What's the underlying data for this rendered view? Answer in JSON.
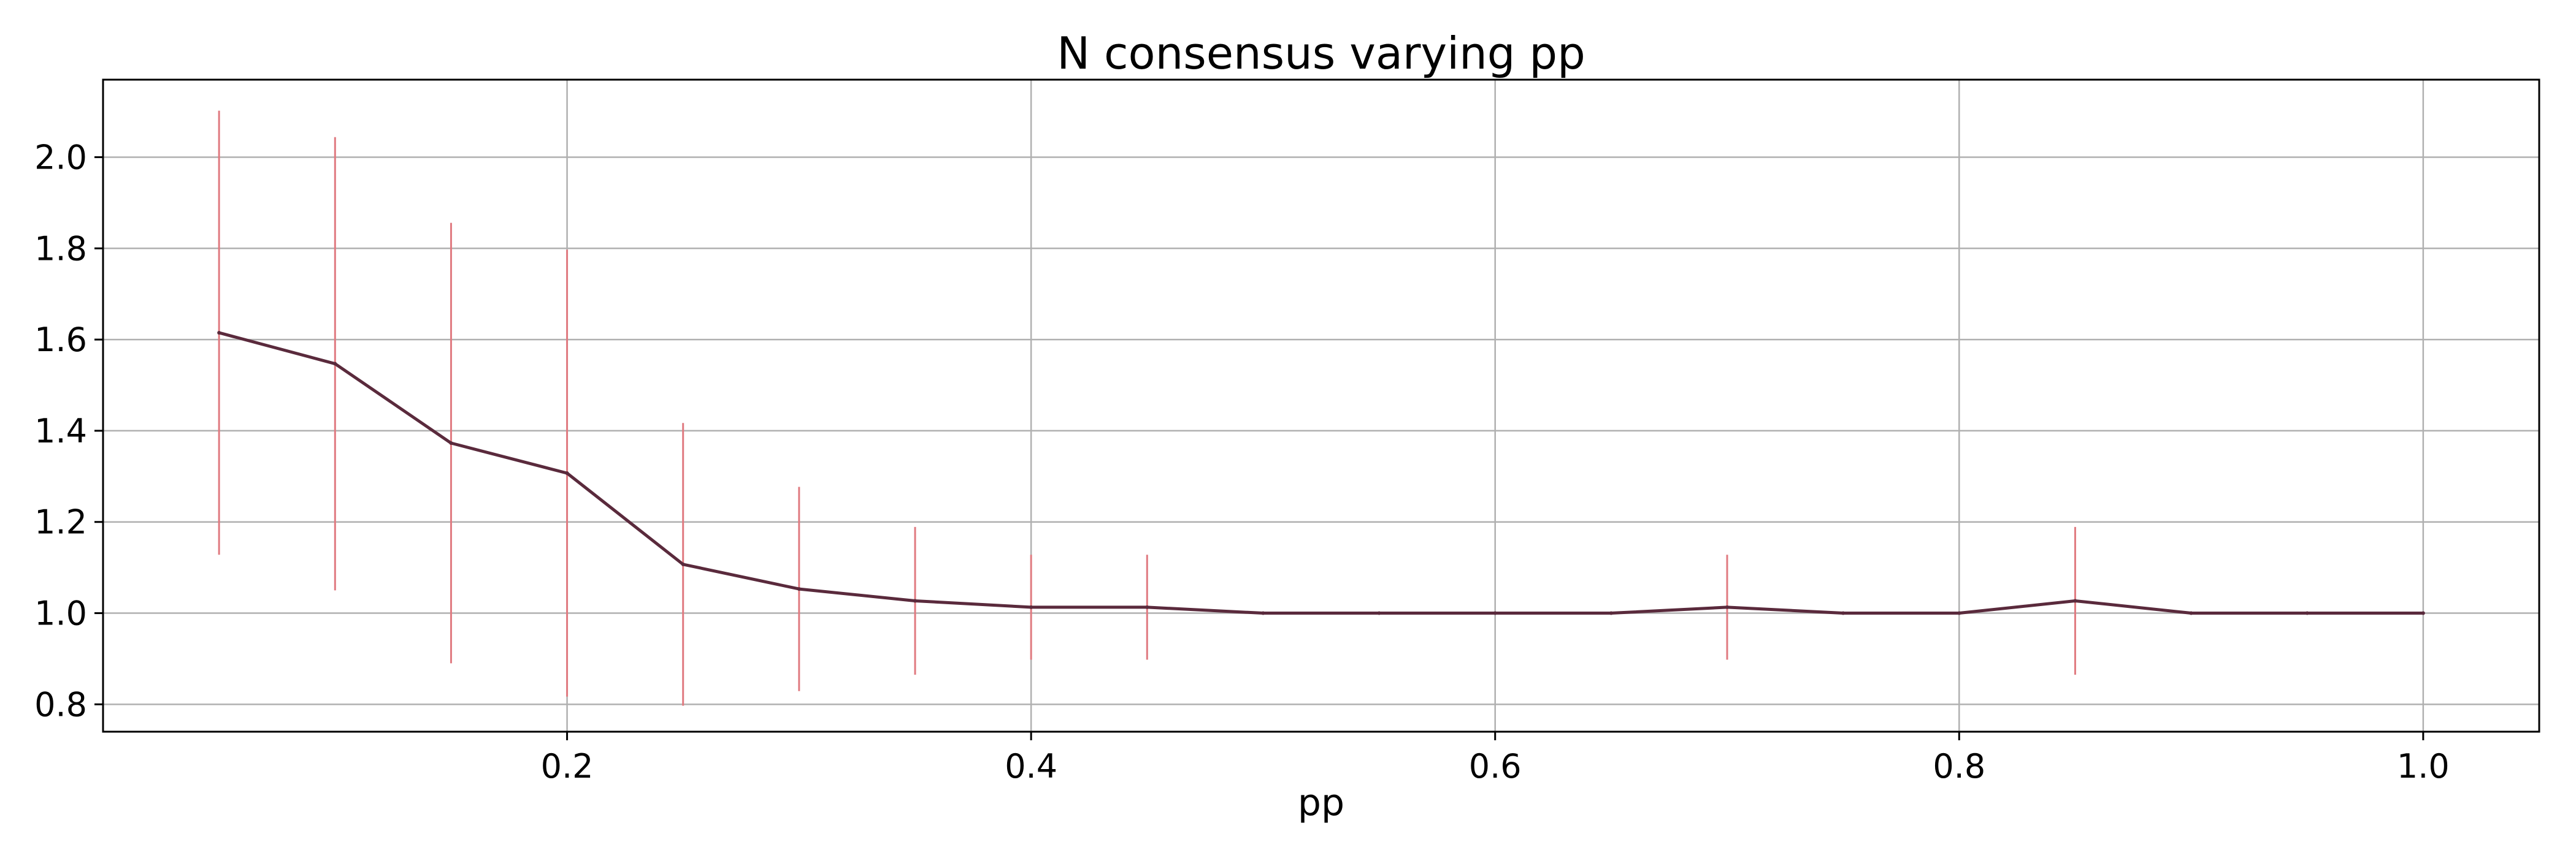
{
  "chart_data": {
    "type": "line",
    "title": "N consensus varying pp",
    "xlabel": "pp",
    "ylabel": "",
    "xlim": [
      0.0,
      1.05
    ],
    "ylim": [
      0.74,
      2.17
    ],
    "xticks": [
      0.2,
      0.4,
      0.6,
      0.8,
      1.0
    ],
    "xtick_labels": [
      "0.2",
      "0.4",
      "0.6",
      "0.8",
      "1.0"
    ],
    "yticks": [
      0.8,
      1.0,
      1.2,
      1.4,
      1.6,
      1.8,
      2.0
    ],
    "ytick_labels": [
      "0.8",
      "1.0",
      "1.2",
      "1.4",
      "1.6",
      "1.8",
      "2.0"
    ],
    "grid": true,
    "line_color": "#5a2a3c",
    "errorbar_color": "#e07a80",
    "series": [
      {
        "x": [
          0.05,
          0.1,
          0.15,
          0.2,
          0.25,
          0.3,
          0.35,
          0.4,
          0.45,
          0.5,
          0.55,
          0.6,
          0.65,
          0.7,
          0.75,
          0.8,
          0.85,
          0.9,
          0.95,
          1.0
        ],
        "y": [
          1.615,
          1.547,
          1.373,
          1.307,
          1.107,
          1.053,
          1.027,
          1.013,
          1.013,
          1.0,
          1.0,
          1.0,
          1.0,
          1.013,
          1.0,
          1.0,
          1.027,
          1.0,
          1.0,
          1.0
        ],
        "yerr": [
          0.487,
          0.497,
          0.483,
          0.49,
          0.31,
          0.224,
          0.162,
          0.115,
          0.115,
          0.0,
          0.0,
          0.0,
          0.0,
          0.115,
          0.0,
          0.0,
          0.162,
          0.0,
          0.0,
          0.0
        ]
      }
    ]
  }
}
